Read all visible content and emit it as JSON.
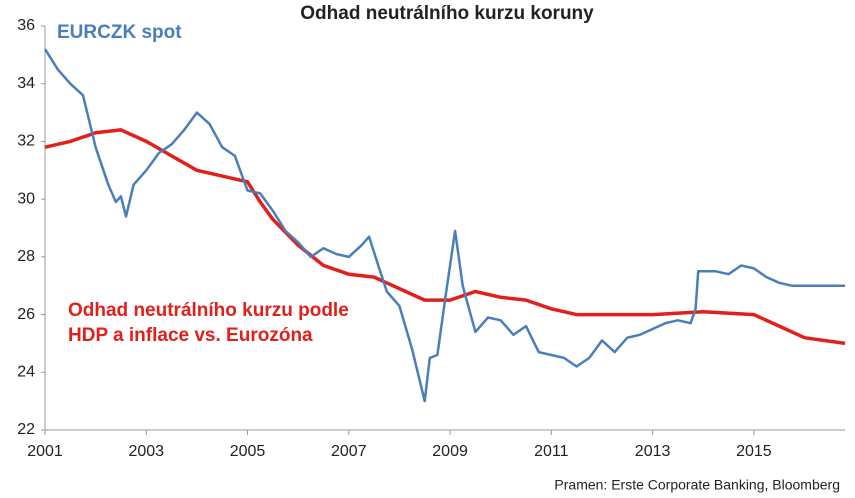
{
  "chart_data": {
    "type": "line",
    "title": "Odhad neutrálního kurzu koruny",
    "source": "Pramen: Erste Corporate Banking, Bloomberg",
    "xlim": [
      2001,
      2016.8
    ],
    "xticks": [
      2001,
      2003,
      2005,
      2007,
      2009,
      2011,
      2013,
      2015
    ],
    "ylim": [
      22,
      36
    ],
    "yticks": [
      22,
      24,
      26,
      28,
      30,
      32,
      34,
      36
    ],
    "grid": false,
    "series": [
      {
        "name": "EURCZK spot",
        "color": "#4a7ebb",
        "x": [
          2001.0,
          2001.25,
          2001.5,
          2001.75,
          2002.0,
          2002.25,
          2002.4,
          2002.5,
          2002.6,
          2002.75,
          2003.0,
          2003.25,
          2003.5,
          2003.75,
          2004.0,
          2004.25,
          2004.5,
          2004.75,
          2005.0,
          2005.25,
          2005.5,
          2005.75,
          2006.0,
          2006.25,
          2006.5,
          2006.75,
          2007.0,
          2007.25,
          2007.4,
          2007.6,
          2007.75,
          2008.0,
          2008.25,
          2008.5,
          2008.6,
          2008.75,
          2008.9,
          2009.1,
          2009.25,
          2009.5,
          2009.75,
          2010.0,
          2010.25,
          2010.5,
          2010.75,
          2011.0,
          2011.25,
          2011.5,
          2011.75,
          2012.0,
          2012.25,
          2012.5,
          2012.75,
          2013.0,
          2013.25,
          2013.5,
          2013.75,
          2013.85,
          2013.9,
          2014.25,
          2014.5,
          2014.75,
          2015.0,
          2015.25,
          2015.5,
          2015.75,
          2016.0,
          2016.25,
          2016.5,
          2016.8
        ],
        "values": [
          35.2,
          34.5,
          34.0,
          33.6,
          31.8,
          30.5,
          29.9,
          30.1,
          29.4,
          30.5,
          31.0,
          31.6,
          31.9,
          32.4,
          33.0,
          32.6,
          31.8,
          31.5,
          30.3,
          30.2,
          29.6,
          28.9,
          28.5,
          28.0,
          28.3,
          28.1,
          28.0,
          28.4,
          28.7,
          27.6,
          26.8,
          26.3,
          24.8,
          23.0,
          24.5,
          24.6,
          26.5,
          28.9,
          27.0,
          25.4,
          25.9,
          25.8,
          25.3,
          25.6,
          24.7,
          24.6,
          24.5,
          24.2,
          24.5,
          25.1,
          24.7,
          25.2,
          25.3,
          25.5,
          25.7,
          25.8,
          25.7,
          26.2,
          27.5,
          27.5,
          27.4,
          27.7,
          27.6,
          27.3,
          27.1,
          27.0,
          27.0,
          27.0,
          27.0,
          27.0
        ]
      },
      {
        "name": "Odhad neutrálního kurzu podle HDP a inflace vs. Eurozóna",
        "color": "#e0201b",
        "x": [
          2001.0,
          2001.5,
          2002.0,
          2002.5,
          2003.0,
          2003.5,
          2004.0,
          2004.5,
          2005.0,
          2005.25,
          2005.5,
          2006.0,
          2006.5,
          2007.0,
          2007.5,
          2008.0,
          2008.5,
          2009.0,
          2009.5,
          2010.0,
          2010.5,
          2011.0,
          2011.5,
          2012.0,
          2013.0,
          2014.0,
          2015.0,
          2015.5,
          2016.0,
          2016.8
        ],
        "values": [
          31.8,
          32.0,
          32.3,
          32.4,
          32.0,
          31.5,
          31.0,
          30.8,
          30.6,
          29.9,
          29.3,
          28.4,
          27.7,
          27.4,
          27.3,
          26.9,
          26.5,
          26.5,
          26.8,
          26.6,
          26.5,
          26.2,
          26.0,
          26.0,
          26.0,
          26.1,
          26.0,
          25.6,
          25.2,
          25.0
        ]
      }
    ]
  }
}
